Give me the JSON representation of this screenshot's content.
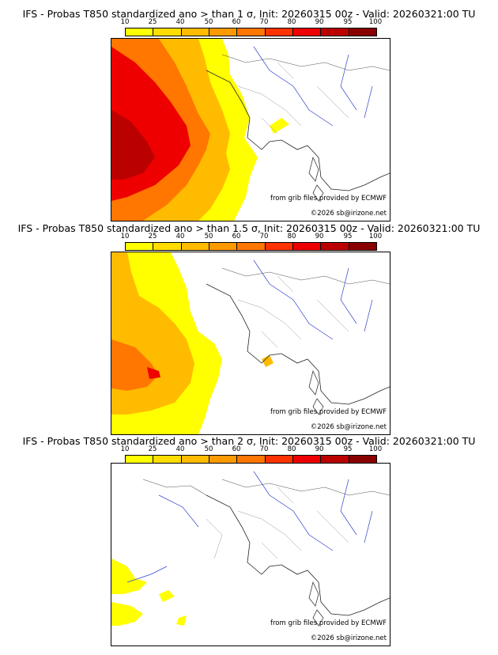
{
  "legend": {
    "ticks": [
      "10",
      "25",
      "40",
      "50",
      "60",
      "70",
      "80",
      "90",
      "95",
      "100"
    ],
    "colors": [
      "#ffff00",
      "#ffdd00",
      "#ffbb00",
      "#ff9900",
      "#ff7700",
      "#ff3300",
      "#ee0000",
      "#bb0000",
      "#880000"
    ]
  },
  "panels": [
    {
      "title": "IFS - Probas T850  standardized ano > than 1 σ, Init: 20260315 00z - Valid: 20260321:00 TU",
      "credit_source": "from grib files provided by ECMWF",
      "credit_copy": "©2026 sb@irizone.net"
    },
    {
      "title": "IFS - Probas T850  standardized ano > than 1.5 σ, Init: 20260315 00z - Valid: 20260321:00 TU",
      "credit_source": "from grib files provided by ECMWF",
      "credit_copy": "©2026 sb@irizone.net"
    },
    {
      "title": "IFS - Probas T850  standardized ano > than 2 σ, Init: 20260315 00z - Valid: 20260321:00 TU",
      "credit_source": "from grib files provided by ECMWF",
      "credit_copy": "©2026 sb@irizone.net"
    }
  ]
}
